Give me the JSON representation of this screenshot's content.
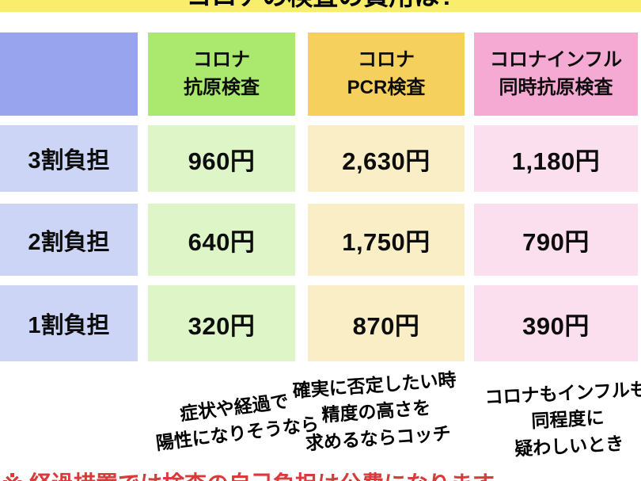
{
  "title": {
    "text": "コロナの検査の費用は?"
  },
  "palette": {
    "title_band": "#f8ee6c",
    "background": "#ffffff",
    "header_blue": "#98a4ee",
    "header_green": "#aae96d",
    "header_yellow": "#f6d05c",
    "header_pink": "#f5aad3",
    "row_blue": "#cdd5f6",
    "row_green": "#def5c8",
    "row_yellow": "#faeec6",
    "row_pink": "#fbdfee",
    "footnote_red": "#d93a3a",
    "text_black": "#0d0d0d"
  },
  "table": {
    "columns": [
      {
        "line1": "コロナ",
        "line2": "抗原検査"
      },
      {
        "line1": "コロナ",
        "line2": "PCR検査"
      },
      {
        "line1": "コロナインフル",
        "line2": "同時抗原検査"
      }
    ],
    "rows": [
      {
        "label": "3割負担",
        "values": [
          "960円",
          "2,630円",
          "1,180円"
        ]
      },
      {
        "label": "2割負担",
        "values": [
          "640円",
          "1,750円",
          "790円"
        ]
      },
      {
        "label": "1割負担",
        "values": [
          "320円",
          "870円",
          "390円"
        ]
      }
    ]
  },
  "annotations": [
    {
      "lines": [
        "症状や経過で",
        "陽性になりそうなら",
        ""
      ]
    },
    {
      "lines": [
        "確実に否定したい時",
        "精度の高さを",
        "求めるならコッチ"
      ]
    },
    {
      "lines": [
        "コロナもインフルも",
        "同程度に",
        "疑わしいとき"
      ]
    }
  ],
  "footnote": {
    "text": "※ 経過措置では検査の自己負担は公費になります"
  },
  "chart_data": {
    "type": "table",
    "title": "コロナの検査の費用は?",
    "columns": [
      "",
      "コロナ抗原検査",
      "コロナPCR検査",
      "コロナインフル同時抗原検査"
    ],
    "row_labels": [
      "3割負担",
      "2割負担",
      "1割負担"
    ],
    "rows": [
      [
        "3割負担",
        "960円",
        "2,630円",
        "1,180円"
      ],
      [
        "2割負担",
        "640円",
        "1,750円",
        "790円"
      ],
      [
        "1割負担",
        "320円",
        "870円",
        "390円"
      ]
    ],
    "values_yen": {
      "コロナ抗原検査": [
        960,
        640,
        320
      ],
      "コロナPCR検査": [
        2630,
        1750,
        870
      ],
      "コロナインフル同時抗原検査": [
        1180,
        790,
        390
      ]
    },
    "notes": [
      "症状や経過で陽性になりそうなら",
      "確実に否定したい時精度の高さを求めるならコッチ",
      "コロナもインフルも同程度に疑わしいとき"
    ]
  }
}
